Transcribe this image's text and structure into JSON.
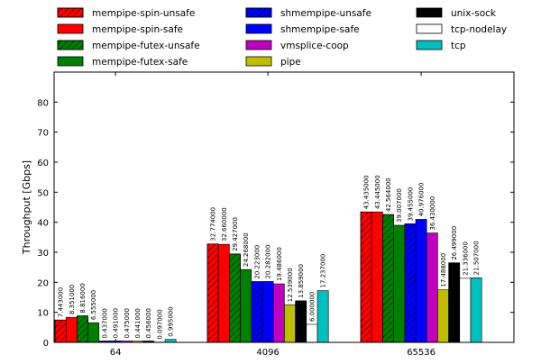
{
  "chart_data": {
    "type": "bar",
    "title": "",
    "xlabel": "",
    "ylabel": "Throughput [Gbps]",
    "ylim": [
      0,
      90
    ],
    "yticks": [
      0,
      10,
      20,
      30,
      40,
      50,
      60,
      70,
      80
    ],
    "grid": false,
    "legend_position": "top",
    "categories": [
      "64",
      "4096",
      "65536"
    ],
    "series": [
      {
        "name": "mempipe-spin-unsafe",
        "color": "#ff0000",
        "hatch": true,
        "values": [
          7.443,
          32.774,
          43.435
        ],
        "labels": [
          "7.443000",
          "32.774000",
          "43.435000"
        ]
      },
      {
        "name": "mempipe-spin-safe",
        "color": "#ff0000",
        "hatch": false,
        "values": [
          8.351,
          32.66,
          43.445
        ],
        "labels": [
          "8.351000",
          "32.660000",
          "43.445000"
        ]
      },
      {
        "name": "mempipe-futex-unsafe",
        "color": "#008000",
        "hatch": true,
        "values": [
          8.816,
          29.427,
          42.564
        ],
        "labels": [
          "8.816000",
          "29.427000",
          "42.564000"
        ]
      },
      {
        "name": "mempipe-futex-safe",
        "color": "#008000",
        "hatch": false,
        "values": [
          6.555,
          24.268,
          39.007
        ],
        "labels": [
          "6.555000",
          "24.268000",
          "39.007000"
        ]
      },
      {
        "name": "shmempipe-unsafe",
        "color": "#0000ff",
        "hatch": true,
        "values": [
          0.437,
          20.223,
          39.455
        ],
        "labels": [
          "0.437000",
          "20.223000",
          "39.455000"
        ]
      },
      {
        "name": "shmempipe-safe",
        "color": "#0000ff",
        "hatch": false,
        "values": [
          0.491,
          20.282,
          40.976
        ],
        "labels": [
          "0.491000",
          "20.282000",
          "40.976000"
        ]
      },
      {
        "name": "vmsplice-coop",
        "color": "#bf00bf",
        "hatch": false,
        "values": [
          0.475,
          19.486,
          36.43
        ],
        "labels": [
          "0.475000",
          "19.486000",
          "36.430000"
        ]
      },
      {
        "name": "pipe",
        "color": "#bfbf00",
        "hatch": false,
        "values": [
          0.441,
          12.539,
          17.488
        ],
        "labels": [
          "0.441000",
          "12.539000",
          "17.488000"
        ]
      },
      {
        "name": "unix-sock",
        "color": "#000000",
        "hatch": false,
        "values": [
          0.456,
          13.859,
          26.499
        ],
        "labels": [
          "0.456000",
          "13.859000",
          "26.499000"
        ]
      },
      {
        "name": "tcp-nodelay",
        "color": "#ffffff",
        "hatch": false,
        "values": [
          0.097,
          6.0,
          21.336
        ],
        "labels": [
          "0.097000",
          "6.000000",
          "21.336000"
        ]
      },
      {
        "name": "tcp",
        "color": "#00bfbf",
        "hatch": false,
        "values": [
          0.995,
          17.237,
          21.507
        ],
        "labels": [
          "0.995000",
          "17.237000",
          "21.507000"
        ]
      }
    ]
  }
}
